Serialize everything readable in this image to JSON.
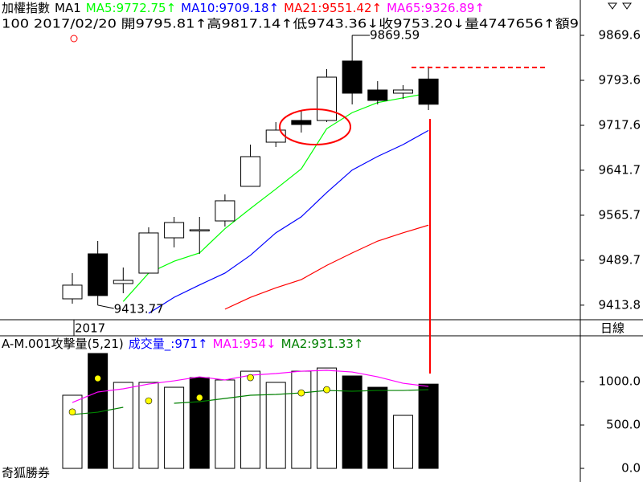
{
  "chart_data": [
    {
      "type": "candlestick",
      "title": "加權指數",
      "indicator": "MA1",
      "info": "100 2017/02/20 開9795.81↑高9817.14↑低9743.36↓收9753.20↓量4747656↑額9",
      "year_label": "2017",
      "period_label": "日線",
      "categories": [
        null,
        null,
        null,
        null,
        null,
        null,
        null,
        null,
        null,
        null,
        null,
        null,
        null,
        null,
        null
      ],
      "open": [
        9424.5,
        9500.5,
        9450.3,
        9467.9,
        9527.6,
        9541.2,
        9556.1,
        9614.5,
        9689.1,
        9725.8,
        9725.8,
        9826.2,
        9777.3,
        9771.9,
        9795.81
      ],
      "high": [
        9467.9,
        9522.2,
        9477.4,
        9545.3,
        9562.9,
        9562.9,
        9600.9,
        9685.0,
        9723.0,
        9742.0,
        9812.6,
        9869.59,
        9792.2,
        9785.5,
        9817.14
      ],
      "low": [
        9416.4,
        9413.77,
        9434.0,
        9467.9,
        9511.4,
        9500.5,
        9546.6,
        9614.5,
        9681.0,
        9705.4,
        9723.0,
        9752.9,
        9752.9,
        9762.4,
        9743.36
      ],
      "close": [
        9447.6,
        9430.0,
        9455.7,
        9535.8,
        9553.4,
        9541.2,
        9590.1,
        9664.7,
        9709.5,
        9719.0,
        9799.0,
        9771.9,
        9759.7,
        9777.3,
        9753.2
      ],
      "series": [
        {
          "name": "MA5:9772.75↑",
          "color": "#00ff00",
          "values": [
            null,
            null,
            9420,
            9468,
            9488,
            9502,
            9543,
            9577,
            9610,
            9644,
            9712,
            9739,
            9756,
            9764,
            9772
          ]
        },
        {
          "name": "MA10:9709.18↑",
          "color": "#0000ff",
          "values": [
            null,
            null,
            null,
            9400,
            9427,
            9448,
            9468,
            9498,
            9536,
            9563,
            9604,
            9642,
            9665,
            9685,
            9709
          ]
        },
        {
          "name": "MA21:9551.42↑",
          "color": "#ff0000",
          "values": [
            null,
            null,
            null,
            null,
            null,
            null,
            9407,
            9427,
            9443,
            9457,
            9481,
            9502,
            9522,
            9536,
            9549
          ]
        },
        {
          "name": "MA65:9326.89↑",
          "color": "#ff00ff",
          "values": [
            null,
            null,
            null,
            null,
            null,
            null,
            null,
            null,
            null,
            null,
            null,
            null,
            null,
            null,
            null
          ]
        }
      ],
      "ylim": [
        9389.2,
        9929.3
      ],
      "yticks": [
        9413.8,
        9489.7,
        9565.7,
        9641.7,
        9717.6,
        9793.6,
        9869.6
      ]
    },
    {
      "type": "bar",
      "title": "A-M.001攻擊量(5,21)",
      "footer": "奇狐勝券",
      "categories": [
        null,
        null,
        null,
        null,
        null,
        null,
        null,
        null,
        null,
        null,
        null,
        null,
        null,
        null,
        null
      ],
      "series": [
        {
          "name": "成交量_:971↑",
          "color": "#0000ff",
          "values": [
            843,
            1324,
            991,
            991,
            935,
            1046,
            1019,
            1120,
            991,
            1120,
            1157,
            1065,
            935,
            611,
            971
          ],
          "bar_colors": [
            "#ffffff",
            "#000000",
            "#ffffff",
            "#ffffff",
            "#ffffff",
            "#000000",
            "#ffffff",
            "#ffffff",
            "#ffffff",
            "#ffffff",
            "#ffffff",
            "#000000",
            "#000000",
            "#ffffff",
            "#000000"
          ]
        },
        {
          "name": "MA1:954↓",
          "color": "#ff00ff",
          "values": [
            759,
            880,
            917,
            972,
            1009,
            1055,
            1019,
            1074,
            1093,
            1120,
            1130,
            1111,
            1055,
            981,
            944
          ]
        },
        {
          "name": "MA2:931.33↑",
          "color": "#008000",
          "values": [
            620,
            648,
            704,
            null,
            750,
            769,
            806,
            843,
            852,
            870,
            898,
            889,
            898,
            898,
            907
          ]
        },
        {
          "color": "#ffff00",
          "values": [
            650,
            1037,
            null,
            778,
            null,
            815,
            null,
            1046,
            null,
            870,
            907,
            null,
            null,
            null,
            null
          ]
        }
      ],
      "ylim": [
        -157,
        1528
      ],
      "yticks": [
        {
          "value": 0,
          "label": "0.0"
        },
        {
          "value": 500,
          "label": "500.0"
        },
        {
          "value": 1000,
          "label": "1000.0"
        }
      ]
    }
  ]
}
